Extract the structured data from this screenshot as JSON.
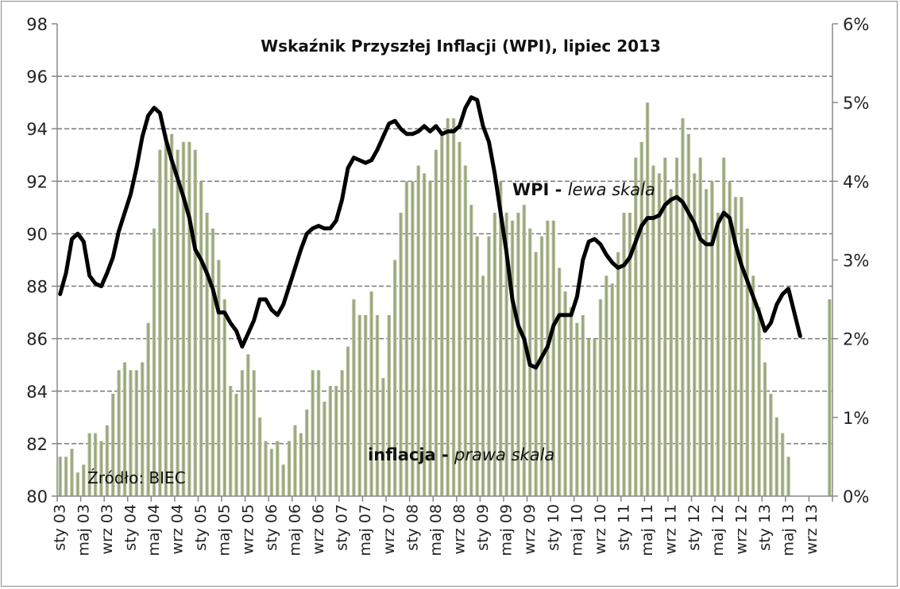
{
  "chart_data": {
    "type": "bar+line",
    "title": "Wskaźnik  Przyszłej Inflacji (WPI), lipiec 2013",
    "source": "Źródło: BIEC",
    "annotations": {
      "wpi_bold": "WPI - ",
      "wpi_italic": "lewa skala",
      "infl_bold": "inflacja - ",
      "infl_italic": "prawa skala"
    },
    "left_axis": {
      "min": 80,
      "max": 98,
      "ticks": [
        "80",
        "82",
        "84",
        "86",
        "88",
        "90",
        "92",
        "94",
        "96",
        "98"
      ]
    },
    "right_axis": {
      "min": 0,
      "max": 6,
      "ticks": [
        "0%",
        "1%",
        "2%",
        "3%",
        "4%",
        "5%",
        "6%"
      ]
    },
    "grid": true,
    "months_total": 132,
    "x_tick_labels": [
      "sty 03",
      "maj 03",
      "wrz 03",
      "sty 04",
      "maj 04",
      "wrz 04",
      "sty 05",
      "maj 05",
      "wrz 05",
      "sty 06",
      "maj 06",
      "wrz 06",
      "sty 07",
      "maj 07",
      "wrz 07",
      "sty 08",
      "maj 08",
      "wrz 08",
      "sty 09",
      "maj 09",
      "wrz 09",
      "sty 10",
      "maj 10",
      "wrz 10",
      "sty 11",
      "maj 11",
      "wrz 11",
      "sty 12",
      "maj 12",
      "wrz 12",
      "sty 13",
      "maj 13",
      "wrz 13"
    ],
    "series": [
      {
        "name": "inflacja",
        "type": "bar",
        "axis": "right",
        "color": "#8d9b6d",
        "values": [
          0.5,
          0.5,
          0.6,
          0.3,
          0.4,
          0.8,
          0.8,
          0.7,
          0.9,
          1.3,
          1.6,
          1.7,
          1.6,
          1.6,
          1.7,
          2.2,
          3.4,
          4.4,
          4.6,
          4.6,
          4.4,
          4.5,
          4.5,
          4.4,
          4.0,
          3.6,
          3.4,
          3.0,
          2.5,
          1.4,
          1.3,
          1.6,
          1.8,
          1.6,
          1.0,
          0.7,
          0.6,
          0.7,
          0.4,
          0.7,
          0.9,
          0.8,
          1.1,
          1.6,
          1.6,
          1.2,
          1.4,
          1.4,
          1.6,
          1.9,
          2.5,
          2.3,
          2.3,
          2.6,
          2.3,
          1.5,
          2.3,
          3.0,
          3.6,
          4.0,
          4.0,
          4.2,
          4.1,
          4.0,
          4.4,
          4.6,
          4.8,
          4.8,
          4.5,
          4.2,
          3.7,
          3.3,
          2.8,
          3.3,
          3.6,
          4.0,
          3.6,
          3.5,
          3.6,
          3.7,
          3.4,
          3.1,
          3.3,
          3.5,
          3.5,
          2.9,
          2.6,
          2.4,
          2.2,
          2.3,
          2.0,
          2.0,
          2.5,
          2.8,
          2.7,
          3.1,
          3.6,
          3.6,
          4.3,
          4.5,
          5.0,
          4.2,
          4.1,
          4.3,
          3.9,
          4.3,
          4.8,
          4.6,
          4.1,
          4.3,
          3.9,
          4.0,
          3.6,
          4.3,
          4.0,
          3.8,
          3.8,
          3.4,
          2.8,
          2.4,
          1.7,
          1.3,
          1.0,
          0.8,
          0.5,
          null,
          null,
          null,
          null,
          null,
          null,
          2.5
        ]
      },
      {
        "name": "WPI",
        "type": "line",
        "axis": "left",
        "color": "#000000",
        "values": [
          87.7,
          88.5,
          89.8,
          90.0,
          89.7,
          88.4,
          88.1,
          88.0,
          88.5,
          89.1,
          90.1,
          90.8,
          91.5,
          92.5,
          93.7,
          94.5,
          94.8,
          94.6,
          93.6,
          92.8,
          92.1,
          91.4,
          90.6,
          89.4,
          89.0,
          88.5,
          87.9,
          87.0,
          87.0,
          86.6,
          86.3,
          85.7,
          86.2,
          86.7,
          87.5,
          87.5,
          87.1,
          86.9,
          87.3,
          88.0,
          88.7,
          89.4,
          90.0,
          90.2,
          90.3,
          90.2,
          90.2,
          90.5,
          91.3,
          92.5,
          92.9,
          92.8,
          92.7,
          92.8,
          93.2,
          93.7,
          94.2,
          94.3,
          94.0,
          93.8,
          93.8,
          93.9,
          94.1,
          93.9,
          94.1,
          93.8,
          93.9,
          93.9,
          94.1,
          94.8,
          95.2,
          95.1,
          94.1,
          93.5,
          92.3,
          90.8,
          89.3,
          87.5,
          86.5,
          86.0,
          85.0,
          84.9,
          85.3,
          85.7,
          86.5,
          86.9,
          86.9,
          86.9,
          87.6,
          89.0,
          89.7,
          89.8,
          89.6,
          89.2,
          88.9,
          88.7,
          88.8,
          89.1,
          89.7,
          90.3,
          90.6,
          90.6,
          90.7,
          91.1,
          91.3,
          91.4,
          91.2,
          90.8,
          90.4,
          89.8,
          89.6,
          89.6,
          90.4,
          90.8,
          90.6,
          89.6,
          88.8,
          88.2,
          87.6,
          87.0,
          86.3,
          86.6,
          87.3,
          87.7,
          87.9,
          87.0,
          86.1
        ]
      }
    ]
  }
}
